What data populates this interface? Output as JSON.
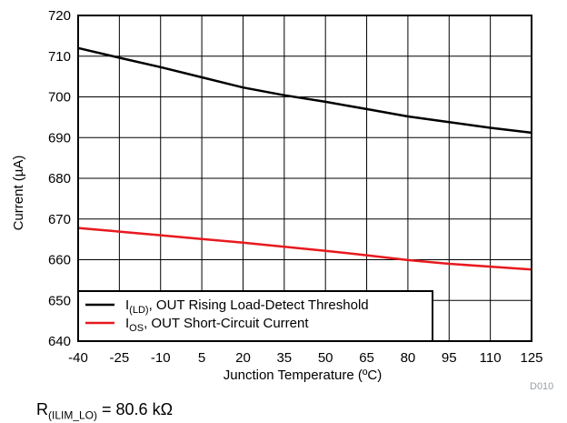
{
  "chart_data": {
    "type": "line",
    "xlabel": "Junction Temperature (ºC)",
    "ylabel": "Current (µA)",
    "xlim": [
      -40,
      125
    ],
    "ylim": [
      640,
      720
    ],
    "xticks": [
      -40,
      -25,
      -10,
      5,
      20,
      35,
      50,
      65,
      80,
      95,
      110,
      125
    ],
    "yticks": [
      640,
      650,
      660,
      670,
      680,
      690,
      700,
      710,
      720
    ],
    "grid": true,
    "legend_position": "bottom-left",
    "series": [
      {
        "name": "I(LD), OUT Rising Load-Detect Threshold",
        "name_main": "I",
        "name_sub": "(LD)",
        "name_rest": ", OUT Rising Load-Detect Threshold",
        "color": "#000000",
        "x": [
          -40,
          -25,
          -10,
          5,
          20,
          35,
          50,
          65,
          80,
          95,
          110,
          125
        ],
        "y": [
          712,
          709.6,
          707.3,
          704.8,
          702.3,
          700.4,
          698.8,
          697,
          695.2,
          693.8,
          692.4,
          691.2
        ]
      },
      {
        "name": "IOS, OUT Short-Circuit Current",
        "name_main": "I",
        "name_sub": "OS",
        "name_rest": ", OUT Short-Circuit Current",
        "color": "#e8191e",
        "x": [
          -40,
          -25,
          -10,
          5,
          20,
          35,
          50,
          65,
          80,
          95,
          110,
          125
        ],
        "y": [
          667.8,
          666.9,
          666,
          665.1,
          664.2,
          663.2,
          662.2,
          661.1,
          659.9,
          659,
          658.3,
          657.6
        ]
      }
    ]
  },
  "watermark": "D010",
  "caption": {
    "main": "R",
    "sub": "(ILIM_LO)",
    "rest": " = 80.6 kΩ"
  }
}
